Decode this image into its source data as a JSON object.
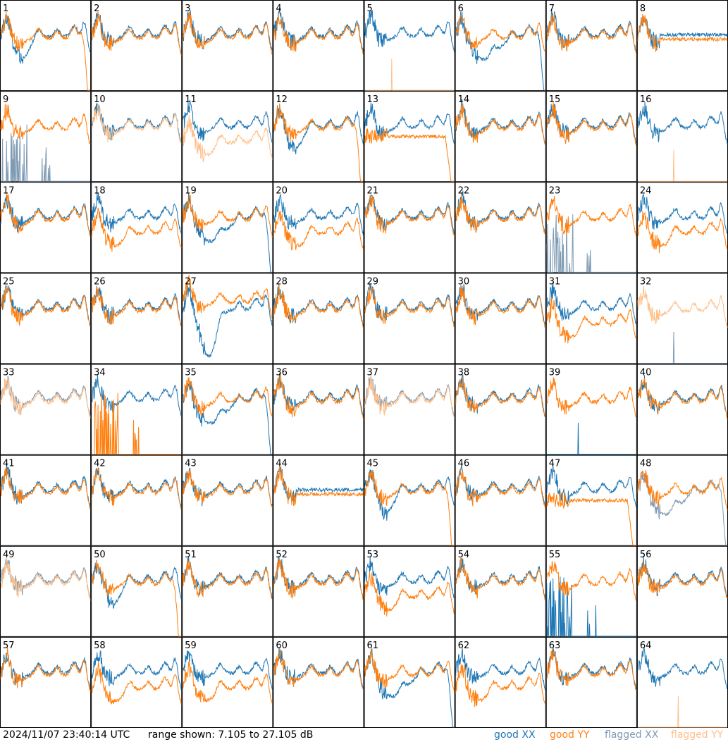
{
  "footer": {
    "timestamp": "2024/11/07 23:40:14 UTC",
    "range_text": "range shown: 7.105 to 27.105 dB"
  },
  "legend": [
    {
      "label": "good XX",
      "color": "#1f77b4"
    },
    {
      "label": "good YY",
      "color": "#ff7f0e"
    },
    {
      "label": "flagged XX",
      "color": "#7f9bb4"
    },
    {
      "label": "flagged YY",
      "color": "#ffc08a"
    }
  ],
  "chart_data": {
    "type": "line",
    "ylim": [
      7.105,
      27.105
    ],
    "grid_rows": 8,
    "grid_cols": 8,
    "panels": [
      {
        "id": 1,
        "xx": "good",
        "yy": "good",
        "shape": "dip"
      },
      {
        "id": 2,
        "xx": "good",
        "yy": "good",
        "shape": "normal"
      },
      {
        "id": 3,
        "xx": "good",
        "yy": "good",
        "shape": "normal"
      },
      {
        "id": 4,
        "xx": "good",
        "yy": "good",
        "shape": "normal"
      },
      {
        "id": 5,
        "xx": "good",
        "yy": "flagged",
        "shape": "xxonly"
      },
      {
        "id": 6,
        "xx": "good",
        "yy": "good",
        "shape": "xxlow"
      },
      {
        "id": 7,
        "xx": "good",
        "yy": "good",
        "shape": "normal"
      },
      {
        "id": 8,
        "xx": "good",
        "yy": "good",
        "shape": "flat"
      },
      {
        "id": 9,
        "xx": "flagged",
        "yy": "good",
        "shape": "xxspikes"
      },
      {
        "id": 10,
        "xx": "good",
        "yy": "flagged",
        "shape": "normal"
      },
      {
        "id": 11,
        "xx": "good",
        "yy": "flagged",
        "shape": "yylow"
      },
      {
        "id": 12,
        "xx": "good",
        "yy": "good",
        "shape": "dip"
      },
      {
        "id": 13,
        "xx": "good",
        "yy": "good",
        "shape": "yyfall"
      },
      {
        "id": 14,
        "xx": "good",
        "yy": "good",
        "shape": "normal"
      },
      {
        "id": 15,
        "xx": "good",
        "yy": "good",
        "shape": "normal"
      },
      {
        "id": 16,
        "xx": "good",
        "yy": "flagged",
        "shape": "xxonly"
      },
      {
        "id": 17,
        "xx": "good",
        "yy": "good",
        "shape": "normal"
      },
      {
        "id": 18,
        "xx": "good",
        "yy": "good",
        "shape": "yylow"
      },
      {
        "id": 19,
        "xx": "good",
        "yy": "good",
        "shape": "xxlow"
      },
      {
        "id": 20,
        "xx": "good",
        "yy": "good",
        "shape": "yylow"
      },
      {
        "id": 21,
        "xx": "good",
        "yy": "good",
        "shape": "normal"
      },
      {
        "id": 22,
        "xx": "good",
        "yy": "good",
        "shape": "normal"
      },
      {
        "id": 23,
        "xx": "flagged",
        "yy": "good",
        "shape": "xxspikes"
      },
      {
        "id": 24,
        "xx": "good",
        "yy": "good",
        "shape": "yylow"
      },
      {
        "id": 25,
        "xx": "good",
        "yy": "good",
        "shape": "normal"
      },
      {
        "id": 26,
        "xx": "good",
        "yy": "good",
        "shape": "normal"
      },
      {
        "id": 27,
        "xx": "good",
        "yy": "good",
        "shape": "deepdip"
      },
      {
        "id": 28,
        "xx": "good",
        "yy": "good",
        "shape": "normal"
      },
      {
        "id": 29,
        "xx": "good",
        "yy": "good",
        "shape": "normal"
      },
      {
        "id": 30,
        "xx": "good",
        "yy": "good",
        "shape": "normal"
      },
      {
        "id": 31,
        "xx": "good",
        "yy": "good",
        "shape": "yylow"
      },
      {
        "id": 32,
        "xx": "flagged",
        "yy": "flagged",
        "shape": "yyonly"
      },
      {
        "id": 33,
        "xx": "flagged",
        "yy": "flagged",
        "shape": "normal"
      },
      {
        "id": 34,
        "xx": "good",
        "yy": "good",
        "shape": "yyspikes"
      },
      {
        "id": 35,
        "xx": "good",
        "yy": "good",
        "shape": "xxlow"
      },
      {
        "id": 36,
        "xx": "good",
        "yy": "good",
        "shape": "normal"
      },
      {
        "id": 37,
        "xx": "flagged",
        "yy": "flagged",
        "shape": "normal"
      },
      {
        "id": 38,
        "xx": "good",
        "yy": "good",
        "shape": "normal"
      },
      {
        "id": 39,
        "xx": "good",
        "yy": "good",
        "shape": "yyonly"
      },
      {
        "id": 40,
        "xx": "good",
        "yy": "good",
        "shape": "normal"
      },
      {
        "id": 41,
        "xx": "good",
        "yy": "good",
        "shape": "normal"
      },
      {
        "id": 42,
        "xx": "good",
        "yy": "good",
        "shape": "normal"
      },
      {
        "id": 43,
        "xx": "good",
        "yy": "good",
        "shape": "normal"
      },
      {
        "id": 44,
        "xx": "good",
        "yy": "good",
        "shape": "flat"
      },
      {
        "id": 45,
        "xx": "good",
        "yy": "good",
        "shape": "dip"
      },
      {
        "id": 46,
        "xx": "good",
        "yy": "good",
        "shape": "normal"
      },
      {
        "id": 47,
        "xx": "good",
        "yy": "good",
        "shape": "yyfall"
      },
      {
        "id": 48,
        "xx": "flagged",
        "yy": "good",
        "shape": "xxlow"
      },
      {
        "id": 49,
        "xx": "flagged",
        "yy": "flagged",
        "shape": "normal"
      },
      {
        "id": 50,
        "xx": "good",
        "yy": "good",
        "shape": "dip"
      },
      {
        "id": 51,
        "xx": "good",
        "yy": "good",
        "shape": "normal"
      },
      {
        "id": 52,
        "xx": "good",
        "yy": "good",
        "shape": "normal"
      },
      {
        "id": 53,
        "xx": "good",
        "yy": "good",
        "shape": "yylow"
      },
      {
        "id": 54,
        "xx": "good",
        "yy": "good",
        "shape": "normal"
      },
      {
        "id": 55,
        "xx": "good",
        "yy": "good",
        "shape": "xxspikes"
      },
      {
        "id": 56,
        "xx": "good",
        "yy": "good",
        "shape": "normal"
      },
      {
        "id": 57,
        "xx": "good",
        "yy": "good",
        "shape": "normal"
      },
      {
        "id": 58,
        "xx": "good",
        "yy": "good",
        "shape": "yylow"
      },
      {
        "id": 59,
        "xx": "good",
        "yy": "good",
        "shape": "yylow"
      },
      {
        "id": 60,
        "xx": "good",
        "yy": "good",
        "shape": "normal"
      },
      {
        "id": 61,
        "xx": "good",
        "yy": "good",
        "shape": "xxlow"
      },
      {
        "id": 62,
        "xx": "good",
        "yy": "good",
        "shape": "yylow"
      },
      {
        "id": 63,
        "xx": "good",
        "yy": "good",
        "shape": "normal"
      },
      {
        "id": 64,
        "xx": "good",
        "yy": "flagged",
        "shape": "xxonly"
      }
    ]
  }
}
